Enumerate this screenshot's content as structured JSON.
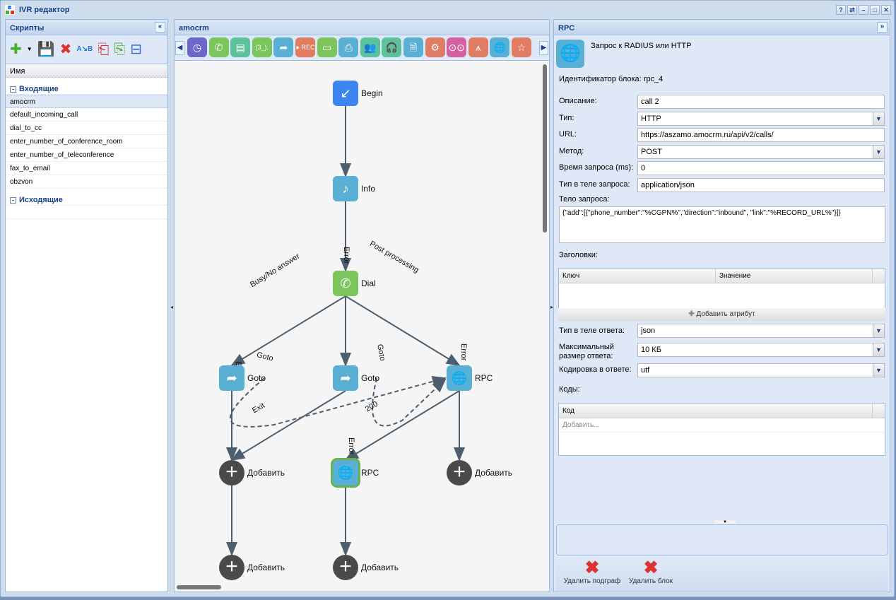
{
  "window": {
    "title": "IVR редактор",
    "buttons": [
      "?",
      "⇄",
      "–",
      "□",
      "✕"
    ]
  },
  "left": {
    "title": "Скрипты",
    "collapse": "«",
    "toolbar": [
      {
        "name": "add",
        "glyph": "✚",
        "color": "#4caf2e"
      },
      {
        "name": "save",
        "glyph": "💾",
        "color": "#2f6fd0"
      },
      {
        "name": "delete",
        "glyph": "✖",
        "color": "#e03030"
      },
      {
        "name": "rename",
        "glyph": "A↘B",
        "color": "#2f6fd0"
      },
      {
        "name": "import",
        "glyph": "⎗",
        "color": "#d03030"
      },
      {
        "name": "export",
        "glyph": "⎘",
        "color": "#4caf2e"
      },
      {
        "name": "properties",
        "glyph": "⊟",
        "color": "#2f6fd0"
      }
    ],
    "column": "Имя",
    "groups": [
      {
        "label": "Входящие",
        "items": [
          "amocrm",
          "default_incoming_call",
          "dial_to_cc",
          "enter_number_of_conference_room",
          "enter_number_of_teleconference",
          "fax_to_email",
          "obzvon"
        ],
        "selected": 0
      },
      {
        "label": "Исходящие",
        "items": [
          ""
        ]
      }
    ]
  },
  "center": {
    "title": "amocrm",
    "toolbar": [
      {
        "name": "clock",
        "glyph": "◷",
        "color": "#6c67c8"
      },
      {
        "name": "phone",
        "glyph": "✆",
        "color": "#7bc55c"
      },
      {
        "name": "contact",
        "glyph": "▤",
        "color": "#5bc29b"
      },
      {
        "name": "digits",
        "glyph": "(3_).",
        "color": "#7bc55c"
      },
      {
        "name": "goto",
        "glyph": "➦",
        "color": "#5ab0d4"
      },
      {
        "name": "record",
        "glyph": "● REC",
        "color": "#e07c62"
      },
      {
        "name": "card",
        "glyph": "▭",
        "color": "#7bc55c"
      },
      {
        "name": "fax",
        "glyph": "⎙",
        "color": "#5ab0d4"
      },
      {
        "name": "group",
        "glyph": "👥",
        "color": "#5bc29b"
      },
      {
        "name": "headset",
        "glyph": "🎧",
        "color": "#5bc29b"
      },
      {
        "name": "document",
        "glyph": "🗎",
        "color": "#5ab0d4"
      },
      {
        "name": "gear",
        "glyph": "⚙",
        "color": "#e07c62"
      },
      {
        "name": "voicemail",
        "glyph": "⊙⊙",
        "color": "#d460a1"
      },
      {
        "name": "hub",
        "glyph": "⩚",
        "color": "#e07c62"
      },
      {
        "name": "globe",
        "glyph": "🌐",
        "color": "#5ab0d4"
      },
      {
        "name": "star",
        "glyph": "☆",
        "color": "#e07c62"
      }
    ],
    "nodes": [
      {
        "id": "begin",
        "label": "Begin",
        "icon": "↙",
        "color": "#3d86f0"
      },
      {
        "id": "info",
        "label": "Info",
        "icon": "♪",
        "color": "#5ab0d4"
      },
      {
        "id": "dial",
        "label": "Dial",
        "icon": "✆",
        "color": "#7bc55c"
      },
      {
        "id": "goto1",
        "label": "Goto",
        "icon": "➦",
        "color": "#5ab0d4"
      },
      {
        "id": "goto2",
        "label": "Goto",
        "icon": "➦",
        "color": "#5ab0d4"
      },
      {
        "id": "rpc1",
        "label": "RPC",
        "icon": "🌐",
        "color": "#5ab0d4"
      },
      {
        "id": "add1",
        "label": "Добавить",
        "icon": "+",
        "color": "#4a4a4a"
      },
      {
        "id": "rpc2",
        "label": "RPC",
        "icon": "🌐",
        "color": "#5ab0d4",
        "selected": true
      },
      {
        "id": "add2",
        "label": "Добавить",
        "icon": "+",
        "color": "#4a4a4a"
      },
      {
        "id": "add3",
        "label": "Добавить",
        "icon": "+",
        "color": "#4a4a4a"
      },
      {
        "id": "add4",
        "label": "Добавить",
        "icon": "+",
        "color": "#4a4a4a"
      }
    ],
    "edges": [
      {
        "from": "begin",
        "to": "info"
      },
      {
        "from": "info",
        "to": "dial"
      },
      {
        "from": "dial",
        "to": "goto1",
        "label": "Busy/No answer"
      },
      {
        "from": "dial",
        "to": "goto2",
        "label": "Error"
      },
      {
        "from": "dial",
        "to": "rpc1",
        "label": "Post processing"
      },
      {
        "from": "goto1",
        "to": "add1",
        "label": "Exit"
      },
      {
        "from": "goto2",
        "to": "add1",
        "label": "Exit"
      },
      {
        "from": "rpc1",
        "to": "rpc2",
        "label": "200"
      },
      {
        "from": "rpc1",
        "to": "add2",
        "label": "Error"
      },
      {
        "from": "add1",
        "to": "add3"
      },
      {
        "from": "rpc2",
        "to": "add4",
        "label": "Error"
      },
      {
        "from": "goto1",
        "to": "rpc1",
        "label": "Goto",
        "dashed": true
      },
      {
        "from": "goto2",
        "to": "rpc1",
        "label": "Goto",
        "dashed": true
      }
    ]
  },
  "right": {
    "title": "RPC",
    "collapse": "»",
    "block_title": "Запрос к RADIUS или HTTP",
    "block_id": "Идентификатор блока: rpc_4",
    "fields": [
      {
        "label": "Описание:",
        "value": "call 2"
      },
      {
        "label": "Тип:",
        "value": "HTTP",
        "dropdown": true
      },
      {
        "label": "URL:",
        "value": "https://aszamo.amocrm.ru/api/v2/calls/"
      },
      {
        "label": "Метод:",
        "value": "POST",
        "dropdown": true
      },
      {
        "label": "Время запроса (ms):",
        "value": "0"
      },
      {
        "label": "Тип в теле запроса:",
        "value": "application/json"
      }
    ],
    "body_label": "Тело запроса:",
    "body_value": "{\"add\":[{\"phone_number\":\"%CGPN%\",\"direction\":\"inbound\", \"link\":\"%RECORD_URL%\"}]}",
    "headers_label": "Заголовки:",
    "headers_cols": [
      "Ключ",
      "Значение"
    ],
    "add_attr": "Добавить атрибут",
    "resp_type_label": "Тип в теле ответа:",
    "resp_type": "json",
    "max_size_label": "Максимальный размер ответа:",
    "max_size": "10 КБ",
    "encoding_label": "Кодировка в ответе:",
    "encoding": "utf",
    "codes_label": "Коды:",
    "codes_col": "Код",
    "codes_add": "Добавить...",
    "delete_subgraph": "Удалить подграф",
    "delete_block": "Удалить блок"
  }
}
